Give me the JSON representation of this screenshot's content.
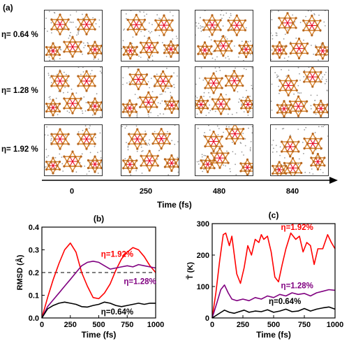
{
  "panel_a": {
    "label": "(a)",
    "rows": [
      "η= 0.64 %",
      "η= 1.28 %",
      "η= 1.92 %"
    ],
    "time_ticks": [
      "0",
      "250",
      "480",
      "840"
    ],
    "axis_label": "Time (fs)",
    "colors": {
      "framework": "#d9822b",
      "node": "#b5651d",
      "dot": "#9a9a9a",
      "red": "#e8001c"
    }
  },
  "chart_data": [
    {
      "type": "line",
      "panel_label": "(b)",
      "xlabel": "Time (fs)",
      "ylabel": "RMSD (Å)",
      "xlim": [
        0,
        1000
      ],
      "ylim": [
        0,
        0.4
      ],
      "x_ticks": [
        "0",
        "250",
        "500",
        "750",
        "1000"
      ],
      "y_ticks": [
        "0.0",
        "0.1",
        "0.2",
        "0.3",
        "0.4"
      ],
      "reference_line": {
        "y": 0.2,
        "style": "dashed"
      },
      "series": [
        {
          "name": "η=1.92%",
          "color": "#ff0000",
          "x": [
            0,
            50,
            100,
            150,
            200,
            250,
            300,
            350,
            400,
            450,
            500,
            550,
            600,
            650,
            700,
            750,
            800,
            850,
            900,
            950,
            1000
          ],
          "y": [
            0.0,
            0.09,
            0.17,
            0.24,
            0.3,
            0.33,
            0.29,
            0.2,
            0.14,
            0.09,
            0.085,
            0.11,
            0.15,
            0.21,
            0.26,
            0.29,
            0.31,
            0.3,
            0.27,
            0.23,
            0.2
          ]
        },
        {
          "name": "η=1.28%",
          "color": "#800080",
          "x": [
            0,
            50,
            100,
            150,
            200,
            250,
            300,
            350,
            400,
            450,
            500,
            550,
            600,
            650,
            700,
            750,
            800,
            850,
            900,
            950,
            1000
          ],
          "y": [
            0.0,
            0.05,
            0.08,
            0.11,
            0.14,
            0.17,
            0.2,
            0.23,
            0.245,
            0.25,
            0.245,
            0.23,
            0.215,
            0.22,
            0.225,
            0.23,
            0.225,
            0.235,
            0.23,
            0.225,
            0.22
          ]
        },
        {
          "name": "η=0.64%",
          "color": "#000000",
          "x": [
            0,
            50,
            100,
            150,
            200,
            250,
            300,
            350,
            400,
            450,
            500,
            550,
            600,
            650,
            700,
            750,
            800,
            850,
            900,
            950,
            1000
          ],
          "y": [
            0.0,
            0.04,
            0.055,
            0.065,
            0.07,
            0.065,
            0.06,
            0.05,
            0.048,
            0.055,
            0.06,
            0.07,
            0.065,
            0.055,
            0.05,
            0.055,
            0.06,
            0.065,
            0.06,
            0.065,
            0.065
          ]
        }
      ]
    },
    {
      "type": "line",
      "panel_label": "(c)",
      "xlabel": "Time (fs)",
      "ylabel": "T̄ (K)",
      "xlim": [
        0,
        1000
      ],
      "ylim": [
        0,
        300
      ],
      "x_ticks": [
        "0",
        "250",
        "500",
        "750",
        "1000"
      ],
      "y_ticks": [
        "0",
        "100",
        "200",
        "300"
      ],
      "series": [
        {
          "name": "η=1.92%",
          "color": "#ff0000",
          "x": [
            0,
            30,
            60,
            90,
            110,
            140,
            160,
            180,
            200,
            230,
            260,
            290,
            320,
            350,
            380,
            400,
            420,
            450,
            480,
            510,
            540,
            570,
            600,
            640,
            680,
            710,
            740,
            770,
            800,
            830,
            860,
            900,
            940,
            970,
            1000
          ],
          "y": [
            0,
            80,
            180,
            265,
            270,
            230,
            260,
            200,
            140,
            110,
            160,
            230,
            200,
            250,
            240,
            265,
            250,
            260,
            210,
            130,
            115,
            170,
            220,
            270,
            250,
            260,
            210,
            240,
            230,
            170,
            220,
            220,
            265,
            240,
            220
          ]
        },
        {
          "name": "η=1.28%",
          "color": "#800080",
          "x": [
            0,
            40,
            70,
            100,
            130,
            160,
            200,
            250,
            300,
            350,
            400,
            450,
            500,
            550,
            600,
            650,
            700,
            750,
            800,
            850,
            900,
            950,
            1000
          ],
          "y": [
            0,
            50,
            90,
            105,
            80,
            60,
            55,
            60,
            55,
            65,
            60,
            70,
            65,
            75,
            70,
            80,
            75,
            78,
            70,
            80,
            85,
            90,
            88
          ]
        },
        {
          "name": "η=0.64%",
          "color": "#000000",
          "x": [
            0,
            40,
            80,
            100,
            140,
            180,
            220,
            260,
            300,
            350,
            400,
            450,
            500,
            550,
            600,
            650,
            700,
            750,
            800,
            850,
            900,
            950,
            1000
          ],
          "y": [
            0,
            10,
            20,
            25,
            18,
            15,
            20,
            25,
            18,
            22,
            20,
            26,
            18,
            22,
            28,
            20,
            22,
            30,
            22,
            28,
            32,
            35,
            28
          ]
        }
      ]
    }
  ]
}
